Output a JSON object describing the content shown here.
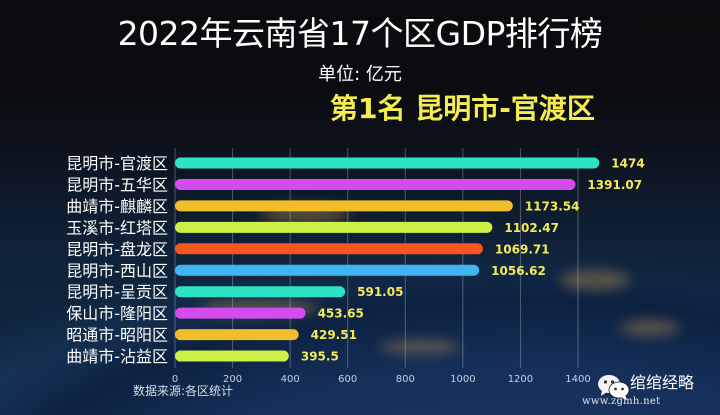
{
  "header": {
    "title": "2022年云南省17个区GDP排行榜",
    "unit": "单位: 亿元",
    "highlight": "第1名 昆明市-官渡区"
  },
  "footer": {
    "source": "数据来源:各区统计",
    "watermark_name": "绾绾经略",
    "watermark_url": "www.zgmh.net",
    "watermark_icon": "wechat-icon"
  },
  "chart_data": {
    "type": "bar",
    "orientation": "horizontal",
    "title": "2022年云南省17个区GDP排行榜",
    "subtitle": "单位: 亿元",
    "xlabel": "",
    "ylabel": "",
    "xlim": [
      0,
      1400
    ],
    "grid": true,
    "categories": [
      "昆明市-官渡区",
      "昆明市-五华区",
      "曲靖市-麒麟区",
      "玉溪市-红塔区",
      "昆明市-盘龙区",
      "昆明市-西山区",
      "昆明市-呈贡区",
      "保山市-隆阳区",
      "昭通市-昭阳区",
      "曲靖市-沾益区"
    ],
    "values": [
      1474,
      1391.07,
      1173.54,
      1102.47,
      1069.71,
      1056.62,
      591.05,
      453.65,
      429.51,
      395.5
    ],
    "value_labels": [
      "1474",
      "1391.07",
      "1173.54",
      "1102.47",
      "1069.71",
      "1056.62",
      "591.05",
      "453.65",
      "429.51",
      "395.5"
    ],
    "colors": [
      "#2de3c4",
      "#d24cf0",
      "#f2bd2a",
      "#cdf046",
      "#f5561f",
      "#3fb6f2",
      "#2de3c4",
      "#d24cf0",
      "#f2bd2a",
      "#cdf046"
    ],
    "xticks": [
      0,
      200,
      400,
      600,
      800,
      1000,
      1200,
      1400
    ],
    "xtick_labels": [
      "0",
      "200",
      "400",
      "600",
      "800",
      "1000",
      "1200",
      "1400"
    ]
  }
}
